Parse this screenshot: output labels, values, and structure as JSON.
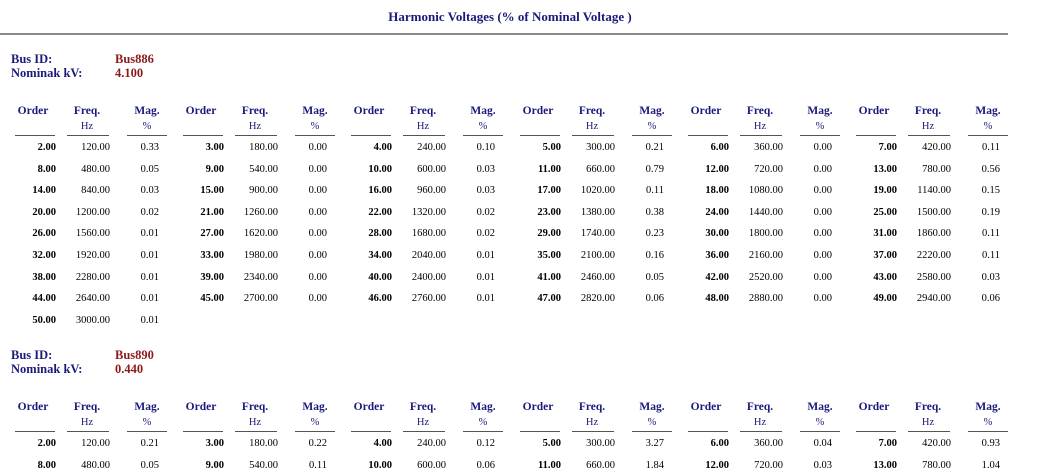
{
  "report": {
    "title": "Harmonic Voltages (% of Nominal Voltage )"
  },
  "labels": {
    "bus_id": "Bus ID:",
    "nominal_kv": "Nominak kV:",
    "col_order": "Order",
    "col_freq": "Freq.",
    "col_freq_unit": "Hz",
    "col_mag": "Mag.",
    "col_mag_unit": "%"
  },
  "buses": [
    {
      "id": "Bus886",
      "kv": "4.100",
      "rows": [
        [
          [
            "2.00",
            "120.00",
            "0.33"
          ],
          [
            "3.00",
            "180.00",
            "0.00"
          ],
          [
            "4.00",
            "240.00",
            "0.10"
          ],
          [
            "5.00",
            "300.00",
            "0.21"
          ],
          [
            "6.00",
            "360.00",
            "0.00"
          ],
          [
            "7.00",
            "420.00",
            "0.11"
          ]
        ],
        [
          [
            "8.00",
            "480.00",
            "0.05"
          ],
          [
            "9.00",
            "540.00",
            "0.00"
          ],
          [
            "10.00",
            "600.00",
            "0.03"
          ],
          [
            "11.00",
            "660.00",
            "0.79"
          ],
          [
            "12.00",
            "720.00",
            "0.00"
          ],
          [
            "13.00",
            "780.00",
            "0.56"
          ]
        ],
        [
          [
            "14.00",
            "840.00",
            "0.03"
          ],
          [
            "15.00",
            "900.00",
            "0.00"
          ],
          [
            "16.00",
            "960.00",
            "0.03"
          ],
          [
            "17.00",
            "1020.00",
            "0.11"
          ],
          [
            "18.00",
            "1080.00",
            "0.00"
          ],
          [
            "19.00",
            "1140.00",
            "0.15"
          ]
        ],
        [
          [
            "20.00",
            "1200.00",
            "0.02"
          ],
          [
            "21.00",
            "1260.00",
            "0.00"
          ],
          [
            "22.00",
            "1320.00",
            "0.02"
          ],
          [
            "23.00",
            "1380.00",
            "0.38"
          ],
          [
            "24.00",
            "1440.00",
            "0.00"
          ],
          [
            "25.00",
            "1500.00",
            "0.19"
          ]
        ],
        [
          [
            "26.00",
            "1560.00",
            "0.01"
          ],
          [
            "27.00",
            "1620.00",
            "0.00"
          ],
          [
            "28.00",
            "1680.00",
            "0.02"
          ],
          [
            "29.00",
            "1740.00",
            "0.23"
          ],
          [
            "30.00",
            "1800.00",
            "0.00"
          ],
          [
            "31.00",
            "1860.00",
            "0.11"
          ]
        ],
        [
          [
            "32.00",
            "1920.00",
            "0.01"
          ],
          [
            "33.00",
            "1980.00",
            "0.00"
          ],
          [
            "34.00",
            "2040.00",
            "0.01"
          ],
          [
            "35.00",
            "2100.00",
            "0.16"
          ],
          [
            "36.00",
            "2160.00",
            "0.00"
          ],
          [
            "37.00",
            "2220.00",
            "0.11"
          ]
        ],
        [
          [
            "38.00",
            "2280.00",
            "0.01"
          ],
          [
            "39.00",
            "2340.00",
            "0.00"
          ],
          [
            "40.00",
            "2400.00",
            "0.01"
          ],
          [
            "41.00",
            "2460.00",
            "0.05"
          ],
          [
            "42.00",
            "2520.00",
            "0.00"
          ],
          [
            "43.00",
            "2580.00",
            "0.03"
          ]
        ],
        [
          [
            "44.00",
            "2640.00",
            "0.01"
          ],
          [
            "45.00",
            "2700.00",
            "0.00"
          ],
          [
            "46.00",
            "2760.00",
            "0.01"
          ],
          [
            "47.00",
            "2820.00",
            "0.06"
          ],
          [
            "48.00",
            "2880.00",
            "0.00"
          ],
          [
            "49.00",
            "2940.00",
            "0.06"
          ]
        ],
        [
          [
            "50.00",
            "3000.00",
            "0.01"
          ]
        ]
      ]
    },
    {
      "id": "Bus890",
      "kv": "0.440",
      "rows": [
        [
          [
            "2.00",
            "120.00",
            "0.21"
          ],
          [
            "3.00",
            "180.00",
            "0.22"
          ],
          [
            "4.00",
            "240.00",
            "0.12"
          ],
          [
            "5.00",
            "300.00",
            "3.27"
          ],
          [
            "6.00",
            "360.00",
            "0.04"
          ],
          [
            "7.00",
            "420.00",
            "0.93"
          ]
        ],
        [
          [
            "8.00",
            "480.00",
            "0.05"
          ],
          [
            "9.00",
            "540.00",
            "0.11"
          ],
          [
            "10.00",
            "600.00",
            "0.06"
          ],
          [
            "11.00",
            "660.00",
            "1.84"
          ],
          [
            "12.00",
            "720.00",
            "0.03"
          ],
          [
            "13.00",
            "780.00",
            "1.04"
          ]
        ]
      ]
    }
  ]
}
